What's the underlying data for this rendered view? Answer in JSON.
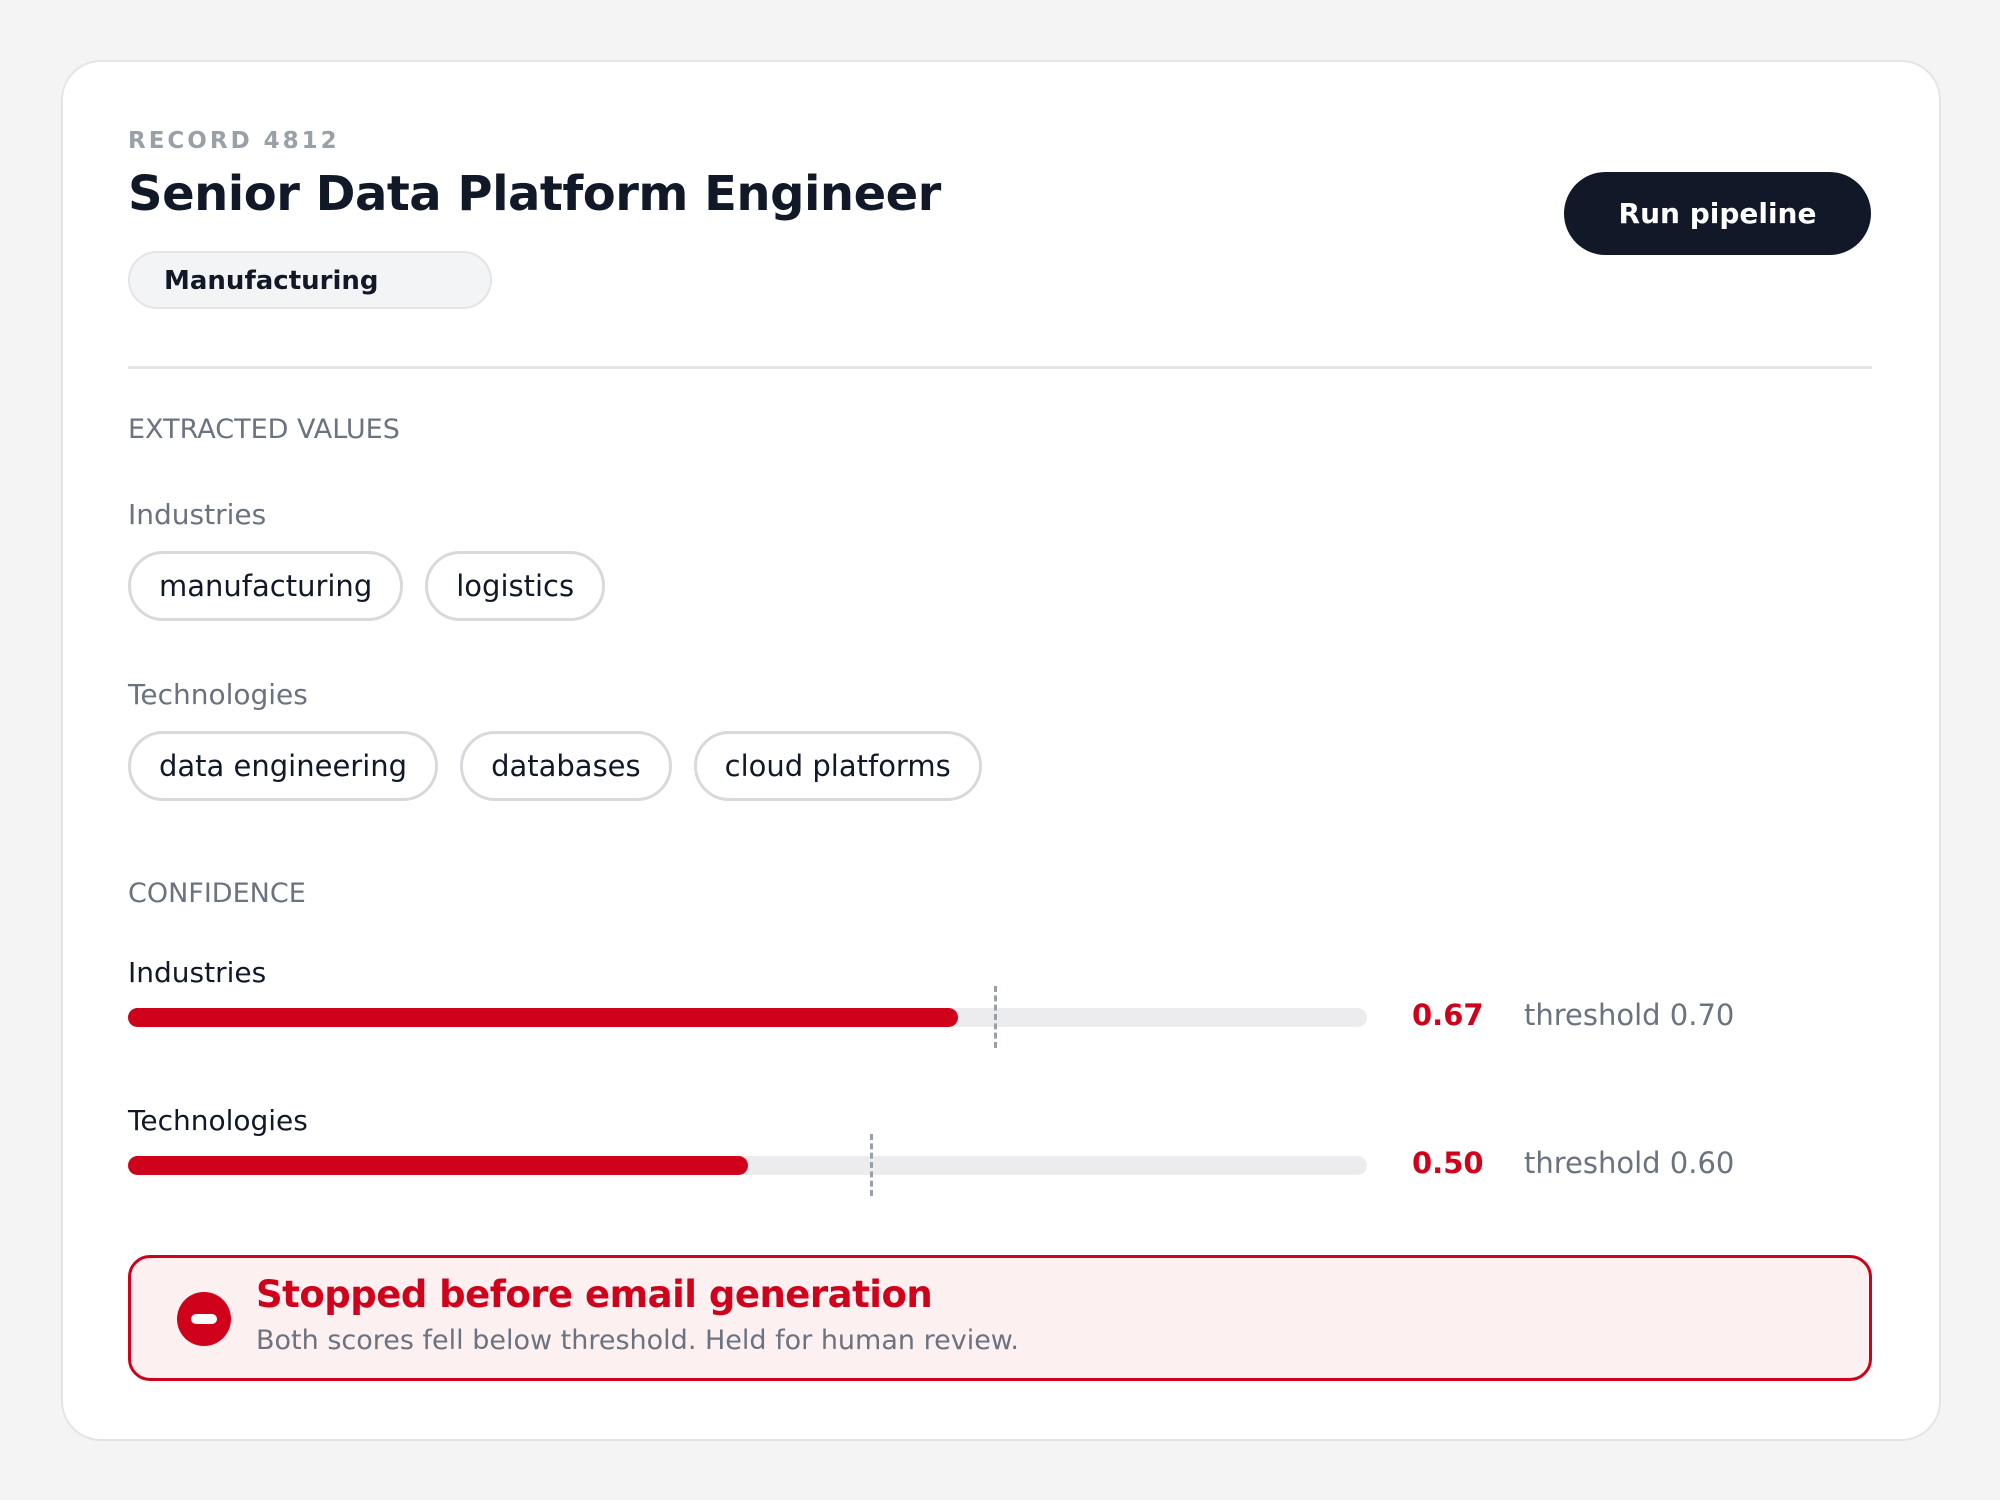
{
  "header": {
    "record": "RECORD 4812",
    "title": "Senior Data Platform Engineer",
    "badge": "Manufacturing",
    "button": "Run pipeline"
  },
  "extracted": {
    "heading": "EXTRACTED VALUES",
    "groups": [
      {
        "label": "Industries",
        "chips": [
          "manufacturing",
          "logistics"
        ]
      },
      {
        "label": "Technologies",
        "chips": [
          "data engineering",
          "databases",
          "cloud platforms"
        ]
      }
    ]
  },
  "confidence": {
    "heading": "CONFIDENCE",
    "threshold_word": "threshold",
    "rows": [
      {
        "label": "Industries",
        "value": 0.67,
        "threshold": {
          "value": 0.7,
          "label": "0.70"
        }
      },
      {
        "label": "Technologies",
        "value": {
          "value": 0.5,
          "label": "0.50"
        },
        "threshold": {
          "value": 0.6,
          "label": "0.60"
        }
      }
    ]
  },
  "alert": {
    "title": "Stopped before email generation",
    "body": "Both scores fell below threshold. Held for human review."
  }
}
